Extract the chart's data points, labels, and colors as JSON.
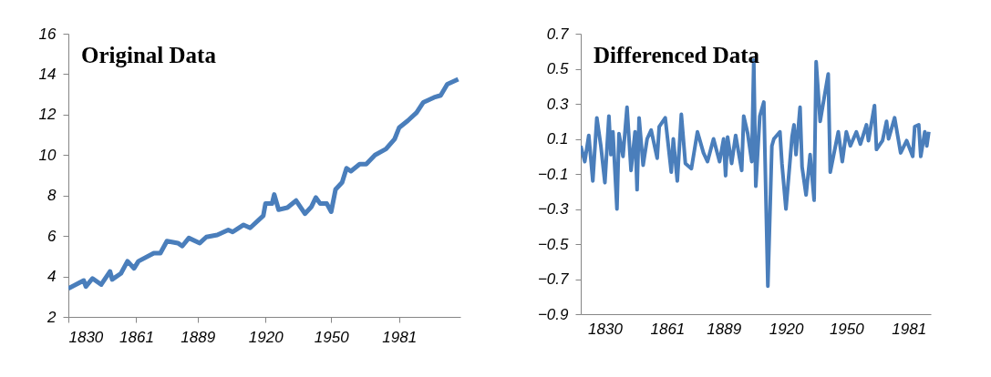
{
  "chart_data": [
    {
      "type": "line",
      "title": "Original Data",
      "grid": false,
      "line_style": "solid",
      "marker": "none",
      "xlim": [
        1830,
        2009
      ],
      "xticks": [
        1830,
        1861,
        1889,
        1920,
        1950,
        1981
      ],
      "ylim": [
        2,
        16
      ],
      "yticks": [
        2,
        4,
        6,
        8,
        10,
        12,
        14,
        16
      ],
      "series": [
        {
          "color": "#4a7ebb",
          "x": [
            1830,
            1837,
            1838,
            1841,
            1845,
            1849,
            1850,
            1854,
            1857,
            1860,
            1862,
            1869,
            1872,
            1875,
            1880,
            1882,
            1885,
            1890,
            1893,
            1898,
            1903,
            1905,
            1910,
            1913,
            1919,
            1920,
            1923,
            1924,
            1926,
            1930,
            1934,
            1938,
            1941,
            1943,
            1945,
            1948,
            1950,
            1952,
            1955,
            1957,
            1959,
            1963,
            1966,
            1970,
            1975,
            1979,
            1981,
            1985,
            1989,
            1992,
            1997,
            2000,
            2003,
            2008
          ],
          "values": [
            3.4,
            3.8,
            3.5,
            3.9,
            3.6,
            4.25,
            3.85,
            4.15,
            4.75,
            4.4,
            4.75,
            5.15,
            5.15,
            5.75,
            5.65,
            5.5,
            5.9,
            5.65,
            5.95,
            6.05,
            6.3,
            6.2,
            6.55,
            6.4,
            7.0,
            7.6,
            7.6,
            8.05,
            7.3,
            7.4,
            7.75,
            7.1,
            7.45,
            7.9,
            7.6,
            7.6,
            7.2,
            8.3,
            8.65,
            9.35,
            9.2,
            9.55,
            9.55,
            10.0,
            10.3,
            10.8,
            11.35,
            11.7,
            12.1,
            12.6,
            12.85,
            12.95,
            13.5,
            13.75
          ]
        }
      ]
    },
    {
      "type": "line",
      "title": "Differenced Data",
      "grid": false,
      "line_style": "solid",
      "marker": "none",
      "xlim": [
        1818,
        1992
      ],
      "xticks": [
        1830,
        1861,
        1889,
        1920,
        1950,
        1981
      ],
      "ylim": [
        -0.9,
        0.7
      ],
      "yticks": [
        -0.9,
        -0.7,
        -0.5,
        -0.3,
        -0.1,
        0.1,
        0.3,
        0.5,
        0.7
      ],
      "series": [
        {
          "color": "#4a7ebb",
          "x": [
            1818,
            1820,
            1822,
            1824,
            1826,
            1828,
            1830,
            1832,
            1833,
            1834,
            1836,
            1837,
            1839,
            1841,
            1843,
            1845,
            1846,
            1847,
            1849,
            1851,
            1853,
            1856,
            1857,
            1860,
            1863,
            1864,
            1866,
            1868,
            1870,
            1873,
            1876,
            1879,
            1881,
            1884,
            1887,
            1889,
            1890,
            1891,
            1893,
            1895,
            1898,
            1899,
            1901,
            1903,
            1904,
            1905,
            1907,
            1909,
            1911,
            1913,
            1914,
            1917,
            1918,
            1920,
            1923,
            1924,
            1925,
            1927,
            1928,
            1930,
            1932,
            1934,
            1935,
            1937,
            1941,
            1942,
            1946,
            1948,
            1950,
            1952,
            1955,
            1957,
            1960,
            1961,
            1964,
            1965,
            1968,
            1970,
            1971,
            1974,
            1977,
            1980,
            1983,
            1984,
            1986,
            1987,
            1989,
            1990,
            1991
          ],
          "values": [
            0.06,
            -0.03,
            0.12,
            -0.14,
            0.22,
            0.06,
            -0.15,
            0.23,
            0.01,
            0.14,
            -0.3,
            0.13,
            0.0,
            0.28,
            -0.08,
            0.14,
            -0.19,
            0.22,
            -0.05,
            0.1,
            0.15,
            -0.01,
            0.17,
            0.22,
            -0.09,
            0.1,
            -0.14,
            0.24,
            -0.04,
            -0.07,
            0.14,
            0.02,
            -0.03,
            0.1,
            -0.03,
            0.1,
            -0.11,
            0.11,
            -0.04,
            0.12,
            -0.08,
            0.23,
            0.13,
            -0.03,
            0.55,
            -0.17,
            0.23,
            0.31,
            -0.74,
            0.06,
            0.1,
            0.14,
            -0.04,
            -0.3,
            0.11,
            0.18,
            0.01,
            0.28,
            -0.06,
            -0.22,
            0.01,
            -0.25,
            0.54,
            0.2,
            0.47,
            -0.09,
            0.14,
            -0.03,
            0.14,
            0.06,
            0.14,
            0.07,
            0.18,
            0.09,
            0.29,
            0.04,
            0.09,
            0.2,
            0.1,
            0.22,
            0.02,
            0.09,
            0.0,
            0.17,
            0.18,
            0.0,
            0.14,
            0.06,
            0.14
          ]
        }
      ]
    }
  ]
}
